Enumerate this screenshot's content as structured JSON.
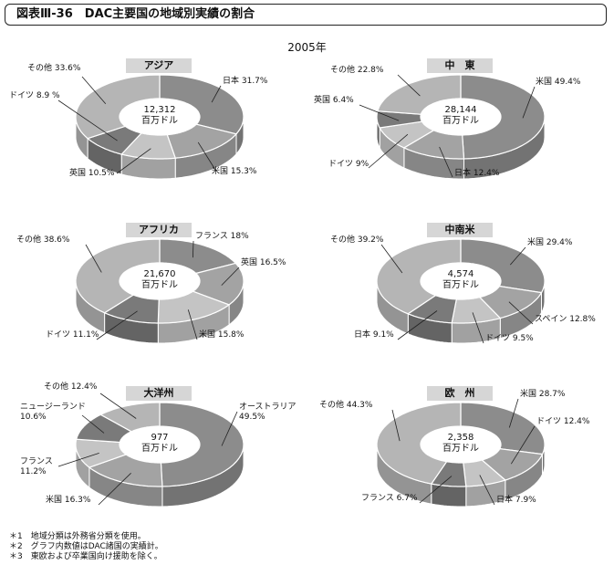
{
  "title": "図表Ⅲ-36　DAC主要国の地域別実績の割合",
  "year": "2005年",
  "footnotes": [
    "＊1　地域分類は外務省分類を使用。",
    "＊2　グラフ内数値はDAC諸国の実績計。",
    "＊3　東欧および卒業国向け援助を除く。"
  ],
  "chart_data": [
    {
      "type": "pie",
      "region": "アジア",
      "center_value": "12,312",
      "center_unit": "百万ドル",
      "slices": [
        {
          "label": "日本 31.7%",
          "value": 31.7,
          "color": "#8c8c8c"
        },
        {
          "label": "米国 15.3%",
          "value": 15.3,
          "color": "#a3a3a3"
        },
        {
          "label": "英国 10.5%",
          "value": 10.5,
          "color": "#c4c4c4"
        },
        {
          "label": "ドイツ 8.9 %",
          "value": 8.9,
          "color": "#7a7a7a"
        },
        {
          "label": "その他 33.6%",
          "value": 33.6,
          "color": "#b5b5b5"
        }
      ]
    },
    {
      "type": "pie",
      "region": "中　東",
      "center_value": "28,144",
      "center_unit": "百万ドル",
      "slices": [
        {
          "label": "米国 49.4%",
          "value": 49.4,
          "color": "#8c8c8c"
        },
        {
          "label": "日本 12.4%",
          "value": 12.4,
          "color": "#a3a3a3"
        },
        {
          "label": "ドイツ 9%",
          "value": 9.0,
          "color": "#c4c4c4"
        },
        {
          "label": "英国 6.4%",
          "value": 6.4,
          "color": "#7a7a7a"
        },
        {
          "label": "その他 22.8%",
          "value": 22.8,
          "color": "#b5b5b5"
        }
      ]
    },
    {
      "type": "pie",
      "region": "アフリカ",
      "center_value": "21,670",
      "center_unit": "百万ドル",
      "slices": [
        {
          "label": "フランス 18%",
          "value": 18.0,
          "color": "#8c8c8c"
        },
        {
          "label": "英国 16.5%",
          "value": 16.5,
          "color": "#a3a3a3"
        },
        {
          "label": "米国 15.8%",
          "value": 15.8,
          "color": "#c4c4c4"
        },
        {
          "label": "ドイツ 11.1%",
          "value": 11.1,
          "color": "#7a7a7a"
        },
        {
          "label": "その他 38.6%",
          "value": 38.6,
          "color": "#b5b5b5"
        }
      ]
    },
    {
      "type": "pie",
      "region": "中南米",
      "center_value": "4,574",
      "center_unit": "百万ドル",
      "slices": [
        {
          "label": "米国 29.4%",
          "value": 29.4,
          "color": "#8c8c8c"
        },
        {
          "label": "スペイン 12.8%",
          "value": 12.8,
          "color": "#a3a3a3"
        },
        {
          "label": "ドイツ 9.5%",
          "value": 9.5,
          "color": "#c4c4c4"
        },
        {
          "label": "日本 9.1%",
          "value": 9.1,
          "color": "#7a7a7a"
        },
        {
          "label": "その他 39.2%",
          "value": 39.2,
          "color": "#b5b5b5"
        }
      ]
    },
    {
      "type": "pie",
      "region": "大洋州",
      "center_value": "977",
      "center_unit": "百万ドル",
      "slices": [
        {
          "label": "オーストラリア\n49.5%",
          "value": 49.5,
          "color": "#8c8c8c"
        },
        {
          "label": "米国 16.3%",
          "value": 16.3,
          "color": "#a3a3a3"
        },
        {
          "label": "フランス\n11.2%",
          "value": 11.2,
          "color": "#c4c4c4"
        },
        {
          "label": "ニュージーランド\n10.6%",
          "value": 10.6,
          "color": "#7a7a7a"
        },
        {
          "label": "その他 12.4%",
          "value": 12.4,
          "color": "#b5b5b5"
        }
      ]
    },
    {
      "type": "pie",
      "region": "欧　州",
      "center_value": "2,358",
      "center_unit": "百万ドル",
      "slices": [
        {
          "label": "米国 28.7%",
          "value": 28.7,
          "color": "#8c8c8c"
        },
        {
          "label": "ドイツ 12.4%",
          "value": 12.4,
          "color": "#a3a3a3"
        },
        {
          "label": "日本 7.9%",
          "value": 7.9,
          "color": "#c4c4c4"
        },
        {
          "label": "フランス 6.7%",
          "value": 6.7,
          "color": "#7a7a7a"
        },
        {
          "label": "その他 44.3%",
          "value": 44.3,
          "color": "#b5b5b5"
        }
      ]
    }
  ]
}
